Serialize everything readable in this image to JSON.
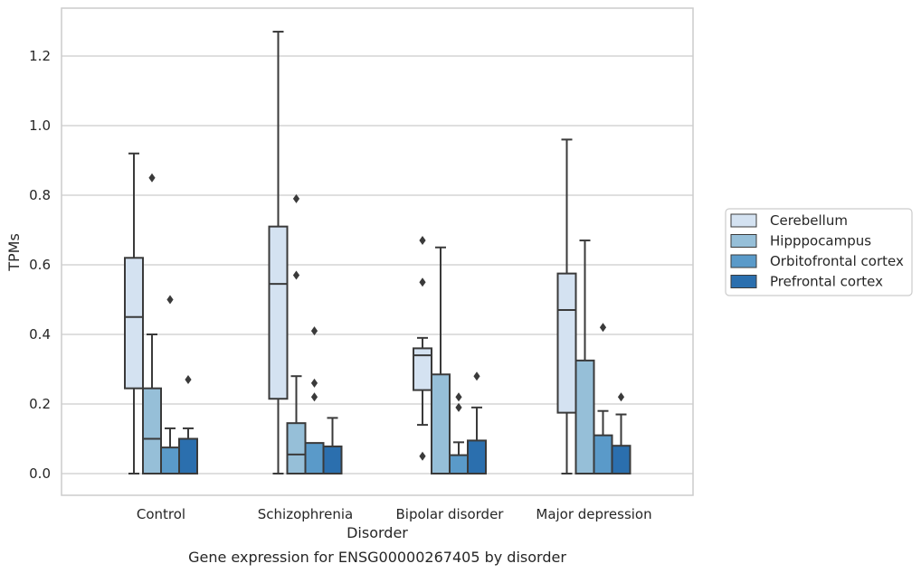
{
  "chart_data": {
    "type": "box",
    "title": "",
    "caption": "Gene expression for ENSG00000267405 by disorder",
    "xlabel": "Disorder",
    "ylabel": "TPMs",
    "ylim": [
      -0.06,
      1.33
    ],
    "yticks": [
      "0.0",
      "0.2",
      "0.4",
      "0.6",
      "0.8",
      "1.0",
      "1.2"
    ],
    "grid": "horizontal",
    "legend_position": "right",
    "categories": [
      "Control",
      "Schizophrenia",
      "Bipolar disorder",
      "Major depression"
    ],
    "series": [
      {
        "name": "Cerebellum",
        "color": "#d4e2f1",
        "boxes": [
          {
            "min": 0.0,
            "q1": 0.245,
            "median": 0.45,
            "q3": 0.62,
            "max": 0.92,
            "outliers": []
          },
          {
            "min": 0.0,
            "q1": 0.215,
            "median": 0.545,
            "q3": 0.71,
            "max": 1.27,
            "outliers": []
          },
          {
            "min": 0.14,
            "q1": 0.24,
            "median": 0.34,
            "q3": 0.36,
            "max": 0.39,
            "outliers": [
              0.67,
              0.55,
              0.05
            ]
          },
          {
            "min": 0.0,
            "q1": 0.175,
            "median": 0.47,
            "q3": 0.575,
            "max": 0.96,
            "outliers": []
          }
        ]
      },
      {
        "name": "Hipppocampus",
        "color": "#96bfd8",
        "boxes": [
          {
            "min": 0.0,
            "q1": 0.0,
            "median": 0.1,
            "q3": 0.245,
            "max": 0.4,
            "outliers": [
              0.85
            ]
          },
          {
            "min": 0.0,
            "q1": 0.0,
            "median": 0.055,
            "q3": 0.145,
            "max": 0.28,
            "outliers": [
              0.79,
              0.57
            ]
          },
          {
            "min": 0.0,
            "q1": 0.0,
            "median": 0.0,
            "q3": 0.285,
            "max": 0.65,
            "outliers": []
          },
          {
            "min": 0.0,
            "q1": 0.0,
            "median": 0.0,
            "q3": 0.325,
            "max": 0.67,
            "outliers": []
          }
        ]
      },
      {
        "name": "Orbitofrontal cortex",
        "color": "#5a9ac9",
        "boxes": [
          {
            "min": 0.0,
            "q1": 0.0,
            "median": 0.0,
            "q3": 0.075,
            "max": 0.13,
            "outliers": [
              0.5
            ]
          },
          {
            "min": 0.0,
            "q1": 0.0,
            "median": 0.0,
            "q3": 0.088,
            "max": 0.088,
            "outliers": [
              0.41,
              0.26,
              0.22
            ]
          },
          {
            "min": 0.0,
            "q1": 0.0,
            "median": 0.0,
            "q3": 0.053,
            "max": 0.09,
            "outliers": [
              0.22,
              0.19
            ]
          },
          {
            "min": 0.0,
            "q1": 0.0,
            "median": 0.0,
            "q3": 0.11,
            "max": 0.18,
            "outliers": [
              0.42
            ]
          }
        ]
      },
      {
        "name": "Prefrontal cortex",
        "color": "#2b6fae",
        "boxes": [
          {
            "min": 0.0,
            "q1": 0.0,
            "median": 0.0,
            "q3": 0.1,
            "max": 0.13,
            "outliers": [
              0.27
            ]
          },
          {
            "min": 0.0,
            "q1": 0.0,
            "median": 0.0,
            "q3": 0.078,
            "max": 0.16,
            "outliers": []
          },
          {
            "min": 0.0,
            "q1": 0.0,
            "median": 0.0,
            "q3": 0.095,
            "max": 0.19,
            "outliers": [
              0.28
            ]
          },
          {
            "min": 0.0,
            "q1": 0.0,
            "median": 0.0,
            "q3": 0.08,
            "max": 0.17,
            "outliers": [
              0.22
            ]
          }
        ]
      }
    ]
  }
}
